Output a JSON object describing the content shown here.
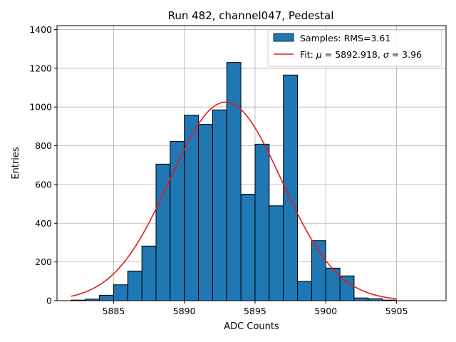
{
  "chart_data": {
    "type": "bar",
    "title": "Run 482, channel047, Pedestal",
    "xlabel": "ADC Counts",
    "ylabel": "Entries",
    "xlim": [
      5881,
      5908.5
    ],
    "ylim": [
      0,
      1420
    ],
    "grid": true,
    "legend_position": "top-right",
    "x_ticks": [
      5885,
      5890,
      5895,
      5900,
      5905
    ],
    "y_ticks": [
      0,
      200,
      400,
      600,
      800,
      1000,
      1200,
      1400
    ],
    "bin_width": 1,
    "histogram": {
      "name": "Samples: RMS=3.61",
      "color": "#1f77b4",
      "bins": [
        {
          "x": 5882.5,
          "value": 3
        },
        {
          "x": 5883.5,
          "value": 8
        },
        {
          "x": 5884.5,
          "value": 28
        },
        {
          "x": 5885.5,
          "value": 82
        },
        {
          "x": 5886.5,
          "value": 153
        },
        {
          "x": 5887.5,
          "value": 282
        },
        {
          "x": 5888.5,
          "value": 705
        },
        {
          "x": 5889.5,
          "value": 822
        },
        {
          "x": 5890.5,
          "value": 958
        },
        {
          "x": 5891.5,
          "value": 910
        },
        {
          "x": 5892.5,
          "value": 985
        },
        {
          "x": 5893.5,
          "value": 1230
        },
        {
          "x": 5894.5,
          "value": 550
        },
        {
          "x": 5895.5,
          "value": 808
        },
        {
          "x": 5896.5,
          "value": 490
        },
        {
          "x": 5897.5,
          "value": 1165
        },
        {
          "x": 5898.5,
          "value": 100
        },
        {
          "x": 5899.5,
          "value": 310
        },
        {
          "x": 5900.5,
          "value": 168
        },
        {
          "x": 5901.5,
          "value": 128
        },
        {
          "x": 5902.5,
          "value": 14
        },
        {
          "x": 5903.5,
          "value": 10
        },
        {
          "x": 5904.5,
          "value": 3
        }
      ]
    },
    "fit": {
      "name": "Fit: μ = 5892.918, σ = 3.96",
      "name_parts": [
        "Fit: ",
        "μ",
        " = 5892.918, ",
        "σ",
        " = 3.96"
      ],
      "color": "#e41a1c",
      "mu": 5892.918,
      "sigma": 3.96,
      "amplitude": 1025,
      "x_range": [
        5882,
        5905
      ]
    }
  }
}
